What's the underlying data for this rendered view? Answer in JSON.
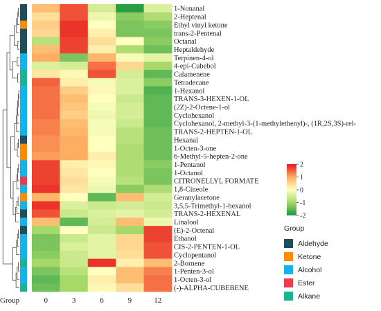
{
  "chart_data": {
    "type": "heatmap",
    "title": "",
    "x": [
      "0",
      "3",
      "6",
      "9",
      "12"
    ],
    "x_axis_caption": "Group",
    "rows": [
      "1-Nonanal",
      "2-Heptenal",
      "Ethyl vinyl ketone",
      "trans-2-Pentenal",
      "Octanal",
      "Heptaldehyde",
      "Terpinen-4-ol",
      "4-epi-Cubebol",
      "Calamenene",
      "Tetradecane",
      "1-Hexanol",
      "TRANS-3-HEXEN-1-OL",
      "(2Z)-2-Octene-1-ol",
      "Cyclohexanol",
      "Cyclohexanol, 2-methyl-3-(1-methylethenyl)-, (1R,2S,3S)-rel-",
      "TRANS-2-HEPTEN-1-OL",
      "Hexanal",
      "1-Octen-3-one",
      "6-Methyl-5-hepten-2-one",
      "1-Pentanol",
      "1-Octanol",
      "CITRONELLYL FORMATE",
      "1,8-Cineole",
      "Geranylacetone",
      "3,5,5-Trimethyl-1-hexanol",
      "TRANS-2-HEXENAL",
      "Linalool",
      "(E)-2-Octenal",
      "Ethanol",
      "CIS-2-PENTEN-1-OL",
      "Cyclopentanol",
      "2-Bornene",
      "1-Penten-3-ol",
      "1-Octen-3-ol",
      "(-)-ALPHA-CUBEBENE"
    ],
    "row_groups": [
      "Aldehyde",
      "Aldehyde",
      "Ketone",
      "Aldehyde",
      "Aldehyde",
      "Aldehyde",
      "Alcohol",
      "Alcohol",
      "Alkane",
      "Alkane",
      "Alcohol",
      "Alcohol",
      "Alcohol",
      "Alcohol",
      "Alcohol",
      "Alcohol",
      "Aldehyde",
      "Ketone",
      "Ketone",
      "Alcohol",
      "Alcohol",
      "Ester",
      "Alcohol",
      "Ketone",
      "Alcohol",
      "Aldehyde",
      "Alcohol",
      "Aldehyde",
      "Alcohol",
      "Alcohol",
      "Alcohol",
      "Alkane",
      "Alcohol",
      "Alcohol",
      "Alkane"
    ],
    "values": [
      [
        0.8,
        1.6,
        -0.5,
        -1.9,
        -0.4
      ],
      [
        0.4,
        1.6,
        -0.2,
        -1.2,
        -0.9
      ],
      [
        0.6,
        1.8,
        0.0,
        -1.3,
        -1.2
      ],
      [
        0.5,
        1.8,
        0.2,
        -1.3,
        -1.3
      ],
      [
        -0.8,
        1.7,
        0.4,
        0.0,
        -1.2
      ],
      [
        0.8,
        1.7,
        0.2,
        -0.9,
        -1.4
      ],
      [
        1.0,
        -1.3,
        0.9,
        -0.1,
        -0.3
      ],
      [
        -0.4,
        -0.5,
        1.4,
        0.5,
        -1.0
      ],
      [
        0.3,
        0.1,
        1.6,
        -0.5,
        -1.5
      ],
      [
        1.5,
        0.2,
        -0.1,
        -0.4,
        -1.2
      ],
      [
        1.4,
        0.6,
        0.1,
        -0.4,
        -1.6
      ],
      [
        1.4,
        0.8,
        0.0,
        -0.6,
        -1.5
      ],
      [
        1.4,
        0.7,
        -0.1,
        -0.5,
        -1.5
      ],
      [
        1.4,
        0.6,
        -0.2,
        -0.5,
        -1.5
      ],
      [
        1.3,
        0.8,
        -0.1,
        -0.6,
        -1.5
      ],
      [
        1.3,
        0.9,
        -0.1,
        -0.8,
        -1.4
      ],
      [
        1.2,
        1.0,
        0.0,
        -0.8,
        -1.4
      ],
      [
        1.2,
        1.0,
        0.0,
        -0.9,
        -1.4
      ],
      [
        1.1,
        1.0,
        0.2,
        -0.9,
        -1.4
      ],
      [
        1.7,
        0.2,
        0.1,
        -0.9,
        -1.2
      ],
      [
        1.7,
        0.3,
        0.0,
        -0.9,
        -1.3
      ],
      [
        1.7,
        0.4,
        -0.1,
        -0.8,
        -1.3
      ],
      [
        1.8,
        0.3,
        -0.2,
        -1.2,
        -0.9
      ],
      [
        0.9,
        0.0,
        -1.5,
        0.8,
        -0.5
      ],
      [
        1.8,
        -0.4,
        -0.6,
        -0.5,
        -0.6
      ],
      [
        1.6,
        -0.6,
        -0.4,
        -0.3,
        -0.5
      ],
      [
        0.8,
        -1.5,
        -0.5,
        0.8,
        -0.2
      ],
      [
        -1.0,
        0.0,
        -0.6,
        -1.0,
        1.7
      ],
      [
        -1.3,
        -0.6,
        -0.3,
        0.5,
        1.7
      ],
      [
        -1.3,
        -0.4,
        -0.3,
        0.5,
        1.6
      ],
      [
        -1.2,
        -0.6,
        -0.3,
        0.4,
        1.6
      ],
      [
        -1.0,
        -0.6,
        1.8,
        0.2,
        0.8
      ],
      [
        -1.3,
        -0.8,
        0.0,
        0.8,
        1.3
      ],
      [
        -1.5,
        -1.0,
        0.2,
        0.8,
        1.4
      ],
      [
        -1.4,
        -1.0,
        0.1,
        0.4,
        1.4
      ]
    ],
    "color_scale": {
      "min": -2,
      "max": 2,
      "ticks": [
        "-2",
        "-1",
        "0",
        "1",
        "2"
      ],
      "colors": [
        "#1a9641",
        "#a6d96a",
        "#ffffbf",
        "#fdae61",
        "#e8141c"
      ]
    },
    "legend": {
      "title": "Group",
      "placement": "right",
      "items": [
        {
          "label": "Aldehyde",
          "color": "#1d4e5c"
        },
        {
          "label": "Ketone",
          "color": "#ff8c00"
        },
        {
          "label": "Alcohol",
          "color": "#10b4ef"
        },
        {
          "label": "Ester",
          "color": "#f0394a"
        },
        {
          "label": "Alkane",
          "color": "#1ab394"
        }
      ]
    },
    "dendrogram": "row"
  }
}
